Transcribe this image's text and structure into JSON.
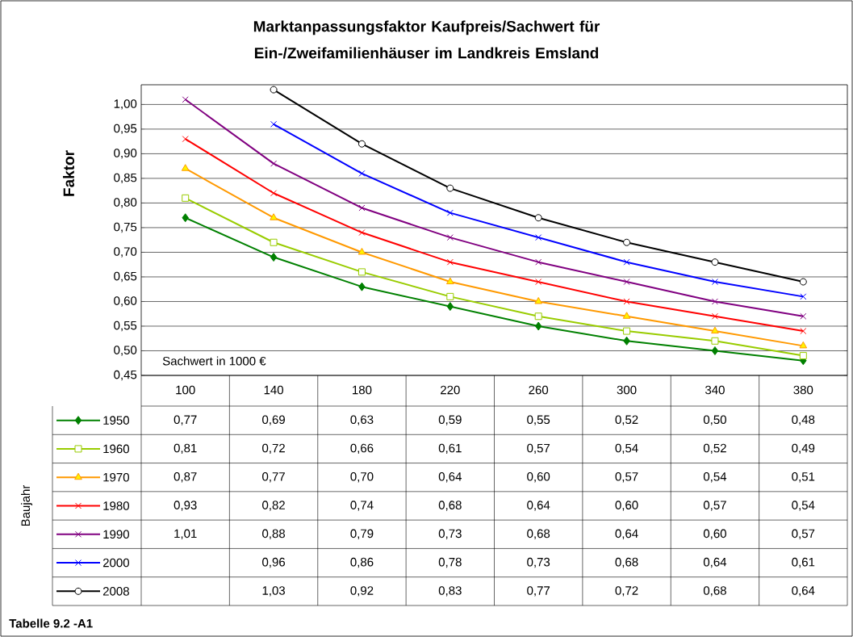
{
  "chart_data": {
    "type": "line",
    "title": "Marktanpassungsfaktor Kaufpreis/Sachwert für Ein-/Zweifamilienhäuser im Landkreis Emsland",
    "xlabel": "Sachwert in 1000 €",
    "ylabel": "Faktor",
    "legend_title": "Baujahr",
    "annotations": [
      "Tabelle 9.2 -A1"
    ],
    "categories": [
      "100",
      "140",
      "180",
      "220",
      "260",
      "300",
      "340",
      "380"
    ],
    "series": [
      {
        "name": "1950",
        "color": "#008000",
        "marker": "diamond",
        "values": [
          0.77,
          0.69,
          0.63,
          0.59,
          0.55,
          0.52,
          0.5,
          0.48
        ],
        "value_labels": [
          "0,77",
          "0,69",
          "0,63",
          "0,59",
          "0,55",
          "0,52",
          "0,50",
          "0,48"
        ]
      },
      {
        "name": "1960",
        "color": "#99cc00",
        "marker": "square",
        "values": [
          0.81,
          0.72,
          0.66,
          0.61,
          0.57,
          0.54,
          0.52,
          0.49
        ],
        "value_labels": [
          "0,81",
          "0,72",
          "0,66",
          "0,61",
          "0,57",
          "0,54",
          "0,52",
          "0,49"
        ]
      },
      {
        "name": "1970",
        "color": "#ff9900",
        "marker": "triangle",
        "values": [
          0.87,
          0.77,
          0.7,
          0.64,
          0.6,
          0.57,
          0.54,
          0.51
        ],
        "value_labels": [
          "0,87",
          "0,77",
          "0,70",
          "0,64",
          "0,60",
          "0,57",
          "0,54",
          "0,51"
        ]
      },
      {
        "name": "1980",
        "color": "#ff0000",
        "marker": "cross",
        "values": [
          0.93,
          0.82,
          0.74,
          0.68,
          0.64,
          0.6,
          0.57,
          0.54
        ],
        "value_labels": [
          "0,93",
          "0,82",
          "0,74",
          "0,68",
          "0,64",
          "0,60",
          "0,57",
          "0,54"
        ]
      },
      {
        "name": "1990",
        "color": "#800080",
        "marker": "cross",
        "values": [
          1.01,
          0.88,
          0.79,
          0.73,
          0.68,
          0.64,
          0.6,
          0.57
        ],
        "value_labels": [
          "1,01",
          "0,88",
          "0,79",
          "0,73",
          "0,68",
          "0,64",
          "0,60",
          "0,57"
        ]
      },
      {
        "name": "2000",
        "color": "#0000ff",
        "marker": "cross",
        "values": [
          null,
          0.96,
          0.86,
          0.78,
          0.73,
          0.68,
          0.64,
          0.61
        ],
        "value_labels": [
          null,
          "0,96",
          "0,86",
          "0,78",
          "0,73",
          "0,68",
          "0,64",
          "0,61"
        ]
      },
      {
        "name": "2008",
        "color": "#000000",
        "marker": "circle",
        "values": [
          null,
          1.03,
          0.92,
          0.83,
          0.77,
          0.72,
          0.68,
          0.64
        ],
        "value_labels": [
          null,
          "1,03",
          "0,92",
          "0,83",
          "0,77",
          "0,72",
          "0,68",
          "0,64"
        ]
      }
    ],
    "ylim": [
      0.45,
      1.04
    ],
    "yticks": [
      {
        "value": 0.45,
        "label": "0,45"
      },
      {
        "value": 0.5,
        "label": "0,50"
      },
      {
        "value": 0.55,
        "label": "0,55"
      },
      {
        "value": 0.6,
        "label": "0,60"
      },
      {
        "value": 0.65,
        "label": "0,65"
      },
      {
        "value": 0.7,
        "label": "0,70"
      },
      {
        "value": 0.75,
        "label": "0,75"
      },
      {
        "value": 0.8,
        "label": "0,80"
      },
      {
        "value": 0.85,
        "label": "0,85"
      },
      {
        "value": 0.9,
        "label": "0,90"
      },
      {
        "value": 0.95,
        "label": "0,95"
      },
      {
        "value": 1.0,
        "label": "1,00"
      }
    ],
    "grid": "y",
    "legend": "bottom left",
    "line_style": "solid"
  }
}
